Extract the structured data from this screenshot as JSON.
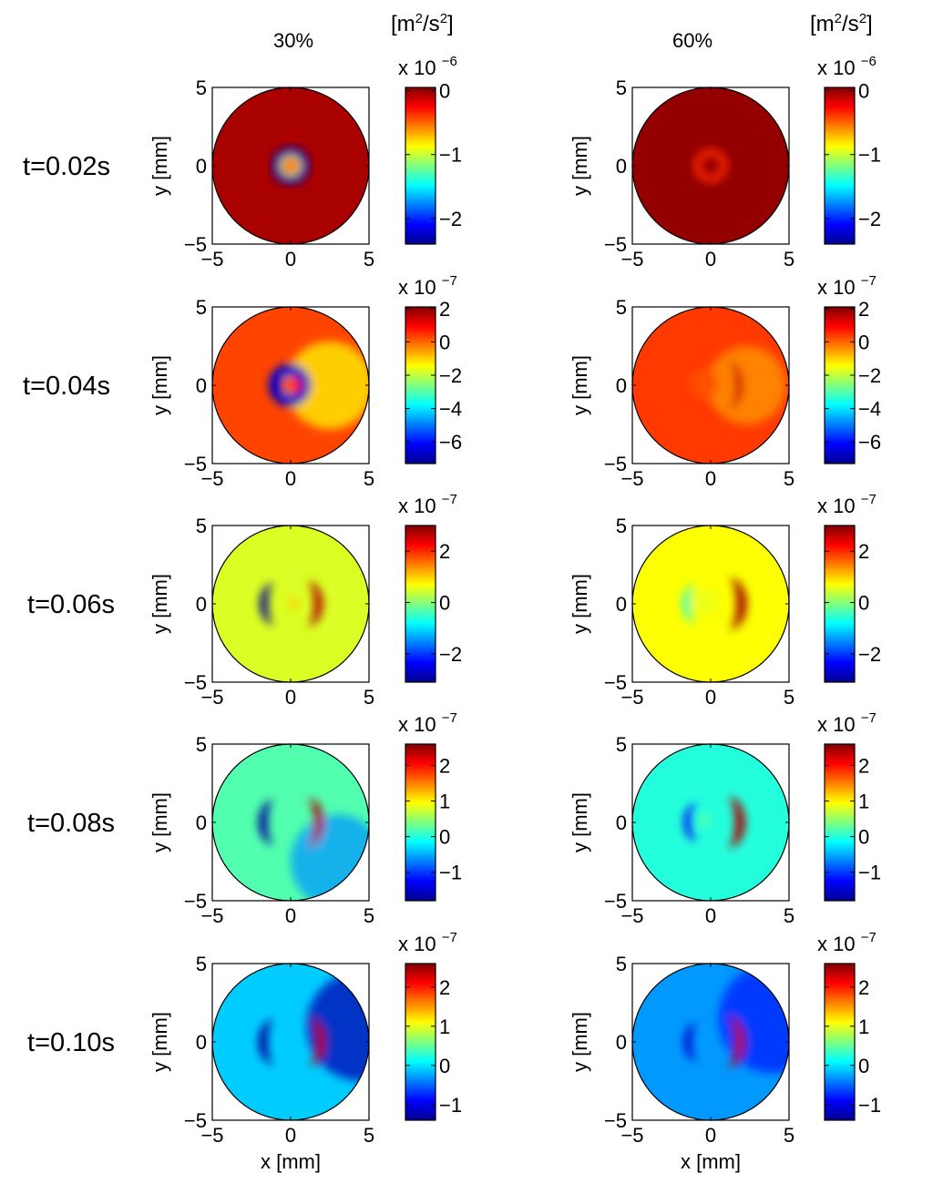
{
  "chart_data": {
    "type": "heatmap",
    "colormap": "jet",
    "columns": [
      {
        "title": "30%",
        "units_base": "[m",
        "units_sup1": "2",
        "units_mid": "/s",
        "units_sup2": "2",
        "units_end": "]"
      },
      {
        "title": "60%",
        "units_base": "[m",
        "units_sup1": "2",
        "units_mid": "/s",
        "units_sup2": "2",
        "units_end": "]"
      }
    ],
    "rows": [
      {
        "label": "t=0.02s"
      },
      {
        "label": "t=0.04s"
      },
      {
        "label": "t=0.06s"
      },
      {
        "label": "t=0.08s"
      },
      {
        "label": "t=0.10s"
      }
    ],
    "xlabel": "x [mm]",
    "ylabel": "y [mm]",
    "xlim": [
      -5,
      5
    ],
    "ylim": [
      -5,
      5
    ],
    "xticks": [
      "−5",
      "0",
      "5"
    ],
    "yticks": [
      "5",
      "0",
      "−5"
    ],
    "colorbars": [
      {
        "exponent_prefix": "x 10",
        "exponent": "−6",
        "clim": [
          -2.4,
          0.05
        ],
        "ticks": [
          {
            "value": 0,
            "label": "0"
          },
          {
            "value": -1,
            "label": "−1"
          },
          {
            "value": -2,
            "label": "−2"
          }
        ]
      },
      {
        "exponent_prefix": "x 10",
        "exponent": "−7",
        "clim": [
          -7.3,
          2.1
        ],
        "ticks": [
          {
            "value": 2,
            "label": "2"
          },
          {
            "value": 0,
            "label": "0"
          },
          {
            "value": -2,
            "label": "−2"
          },
          {
            "value": -4,
            "label": "−4"
          },
          {
            "value": -6,
            "label": "−6"
          }
        ]
      },
      {
        "exponent_prefix": "x 10",
        "exponent": "−7",
        "clim": [
          -3.1,
          3.0
        ],
        "ticks": [
          {
            "value": 2,
            "label": "2"
          },
          {
            "value": 0,
            "label": "0"
          },
          {
            "value": -2,
            "label": "−2"
          }
        ]
      },
      {
        "exponent_prefix": "x 10",
        "exponent": "−7",
        "clim": [
          -1.8,
          2.6
        ],
        "ticks": [
          {
            "value": 2,
            "label": "2"
          },
          {
            "value": 1,
            "label": "1"
          },
          {
            "value": 0,
            "label": "0"
          },
          {
            "value": -1,
            "label": "−1"
          }
        ]
      },
      {
        "exponent_prefix": "x 10",
        "exponent": "−7",
        "clim": [
          -1.4,
          2.6
        ],
        "ticks": [
          {
            "value": 2,
            "label": "2"
          },
          {
            "value": 1,
            "label": "1"
          },
          {
            "value": 0,
            "label": "0"
          },
          {
            "value": -1,
            "label": "−1"
          }
        ]
      }
    ],
    "panels": [
      {
        "row": 0,
        "col": 0,
        "background": -0.05,
        "features": [
          {
            "shape": "ring",
            "x": 0,
            "y": 0,
            "r": 0.9,
            "w": 0.6,
            "value": -2.3
          },
          {
            "shape": "ring",
            "x": 0,
            "y": 0,
            "r": 0.55,
            "w": 0.25,
            "value": -1.0
          },
          {
            "shape": "disk",
            "x": 0,
            "y": 0,
            "r": 0.5,
            "value": -0.5
          }
        ]
      },
      {
        "row": 0,
        "col": 1,
        "background": 0.0,
        "features": [
          {
            "shape": "ring",
            "x": 0,
            "y": 0,
            "r": 0.85,
            "w": 0.45,
            "value": -0.35
          }
        ]
      },
      {
        "row": 1,
        "col": 0,
        "background": 0.3,
        "features": [
          {
            "shape": "gradient",
            "x": 2.5,
            "y": 0,
            "r": 2.8,
            "value": -1.4
          },
          {
            "shape": "ring",
            "x": -0.05,
            "y": 0,
            "r": 0.95,
            "w": 0.8,
            "value": -6.6
          },
          {
            "shape": "disk",
            "x": 0.2,
            "y": 0,
            "r": 0.5,
            "value": 0.6
          }
        ]
      },
      {
        "row": 1,
        "col": 1,
        "background": 0.4,
        "features": [
          {
            "shape": "gradient",
            "x": 2.3,
            "y": 0,
            "r": 2.5,
            "value": -0.5
          },
          {
            "shape": "crescent",
            "x": 1.0,
            "y": 0,
            "r": 1.5,
            "value": 1.3
          },
          {
            "shape": "disk",
            "x": -0.4,
            "y": 0.1,
            "r": 0.9,
            "value": 0.2
          }
        ]
      },
      {
        "row": 2,
        "col": 0,
        "background": 0.5,
        "features": [
          {
            "shape": "crescent",
            "x": 1.0,
            "y": 0,
            "r": 1.4,
            "value": 2.7
          },
          {
            "shape": "crescent_left",
            "x": -1.0,
            "y": 0,
            "r": 1.3,
            "value": -3.0
          },
          {
            "shape": "disk",
            "x": 0.2,
            "y": 0,
            "r": 0.35,
            "value": 1.0
          }
        ]
      },
      {
        "row": 2,
        "col": 1,
        "background": 0.7,
        "features": [
          {
            "shape": "crescent",
            "x": 1.1,
            "y": 0,
            "r": 1.6,
            "value": 2.8
          },
          {
            "shape": "crescent_left",
            "x": -0.9,
            "y": 0,
            "r": 1.2,
            "value": -0.5
          },
          {
            "shape": "disk",
            "x": -0.3,
            "y": 0.1,
            "r": 0.8,
            "value": 0.6
          }
        ]
      },
      {
        "row": 3,
        "col": 0,
        "background": 0.2,
        "features": [
          {
            "shape": "gradient",
            "x": 3.0,
            "y": -2.5,
            "r": 3.0,
            "value": -0.6
          },
          {
            "shape": "crescent",
            "x": 1.0,
            "y": 0,
            "r": 1.5,
            "value": 2.4
          },
          {
            "shape": "crescent_left",
            "x": -1.0,
            "y": 0,
            "r": 1.4,
            "value": -1.7
          }
        ]
      },
      {
        "row": 3,
        "col": 1,
        "background": 0.0,
        "features": [
          {
            "shape": "crescent",
            "x": 1.0,
            "y": 0,
            "r": 1.6,
            "value": 2.4
          },
          {
            "shape": "crescent_left",
            "x": -0.8,
            "y": 0,
            "r": 1.2,
            "value": -1.2
          },
          {
            "shape": "disk",
            "x": -0.4,
            "y": 0.1,
            "r": 0.4,
            "value": 0.2
          }
        ]
      },
      {
        "row": 4,
        "col": 0,
        "background": -0.1,
        "features": [
          {
            "shape": "gradient",
            "x": 4.5,
            "y": 1.0,
            "r": 3.5,
            "value": -1.2
          },
          {
            "shape": "crescent",
            "x": 1.1,
            "y": 0,
            "r": 1.5,
            "value": 2.4
          },
          {
            "shape": "crescent_left",
            "x": -1.0,
            "y": 0,
            "r": 1.4,
            "value": -1.3
          }
        ]
      },
      {
        "row": 4,
        "col": 1,
        "background": -0.3,
        "features": [
          {
            "shape": "gradient",
            "x": 4.0,
            "y": 1.5,
            "r": 3.5,
            "value": -0.8
          },
          {
            "shape": "crescent",
            "x": 1.0,
            "y": 0,
            "r": 1.6,
            "value": 2.4
          },
          {
            "shape": "crescent_left",
            "x": -0.8,
            "y": 0,
            "r": 1.2,
            "value": -1.1
          }
        ]
      }
    ]
  }
}
